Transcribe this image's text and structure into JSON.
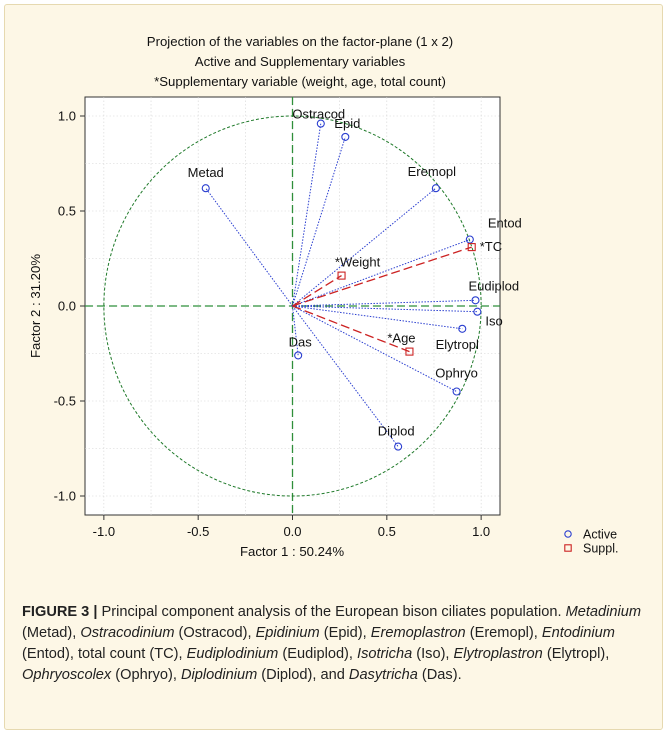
{
  "colors": {
    "background": "#fdf7e6",
    "active": "#2b3fd0",
    "supplementary": "#cc2222",
    "axis_lines": "#2f8f3a",
    "unit_circle": "#1f7a2a"
  },
  "chart_data": {
    "type": "scatter",
    "title_lines": [
      "Projection of the variables on the factor-plane (1 x 2)",
      "Active and Supplementary variables",
      "*Supplementary variable (weight, age, total count)"
    ],
    "xlabel": "Factor 1 : 50.24%",
    "ylabel": "Factor 2 : 31.20%",
    "xlim": [
      -1.1,
      1.1
    ],
    "ylim": [
      -1.1,
      1.1
    ],
    "x_ticks": [
      "-1.0",
      "-0.5",
      "0.0",
      "0.5",
      "1.0"
    ],
    "y_ticks": [
      "1.0",
      "0.5",
      "0.0",
      "-0.5",
      "-1.0"
    ],
    "grid": true,
    "unit_circle": true,
    "legend_position": "bottom-right, outside plot",
    "legend": [
      {
        "label": "Active",
        "marker": "circle"
      },
      {
        "label": "Suppl.",
        "marker": "square"
      }
    ],
    "series": [
      {
        "name": "Active",
        "marker": "circle",
        "points": [
          {
            "label": "Ostracod",
            "x": 0.15,
            "y": 0.96
          },
          {
            "label": "Epid",
            "x": 0.28,
            "y": 0.89
          },
          {
            "label": "Metad",
            "x": -0.46,
            "y": 0.62
          },
          {
            "label": "Eremopl",
            "x": 0.76,
            "y": 0.62
          },
          {
            "label": "Entod",
            "x": 0.94,
            "y": 0.35
          },
          {
            "label": "Eudiplod",
            "x": 0.97,
            "y": 0.03
          },
          {
            "label": "Iso",
            "x": 0.98,
            "y": -0.03
          },
          {
            "label": "Elytropl",
            "x": 0.9,
            "y": -0.12
          },
          {
            "label": "Das",
            "x": 0.03,
            "y": -0.26
          },
          {
            "label": "Ophryo",
            "x": 0.87,
            "y": -0.45
          },
          {
            "label": "Diplod",
            "x": 0.56,
            "y": -0.74
          }
        ]
      },
      {
        "name": "Suppl.",
        "marker": "square",
        "points": [
          {
            "label": "*Weight",
            "x": 0.26,
            "y": 0.16
          },
          {
            "label": "*TC",
            "x": 0.95,
            "y": 0.31
          },
          {
            "label": "*Age",
            "x": 0.62,
            "y": -0.24
          }
        ]
      }
    ]
  },
  "caption": {
    "label": "FIGURE 3",
    "separator": " | ",
    "segments": [
      {
        "text": "Principal component analysis of the European bison ciliates population. ",
        "italic": false
      },
      {
        "text": "Metadinium",
        "italic": true
      },
      {
        "text": " (Metad), ",
        "italic": false
      },
      {
        "text": "Ostracodinium",
        "italic": true
      },
      {
        "text": " (Ostracod), ",
        "italic": false
      },
      {
        "text": "Epidinium",
        "italic": true
      },
      {
        "text": " (Epid), ",
        "italic": false
      },
      {
        "text": "Eremoplastron",
        "italic": true
      },
      {
        "text": " (Eremopl), ",
        "italic": false
      },
      {
        "text": "Entodinium",
        "italic": true
      },
      {
        "text": " (Entod), total count (TC), ",
        "italic": false
      },
      {
        "text": "Eudiplodinium",
        "italic": true
      },
      {
        "text": " (Eudiplod), ",
        "italic": false
      },
      {
        "text": "Isotricha",
        "italic": true
      },
      {
        "text": " (Iso), ",
        "italic": false
      },
      {
        "text": "Elytroplastron",
        "italic": true
      },
      {
        "text": " (Elytropl), ",
        "italic": false
      },
      {
        "text": "Ophryoscolex",
        "italic": true
      },
      {
        "text": " (Ophryo), ",
        "italic": false
      },
      {
        "text": "Diplodinium",
        "italic": true
      },
      {
        "text": " (Diplod), and ",
        "italic": false
      },
      {
        "text": "Dasytricha",
        "italic": true
      },
      {
        "text": " (Das).",
        "italic": false
      }
    ]
  }
}
